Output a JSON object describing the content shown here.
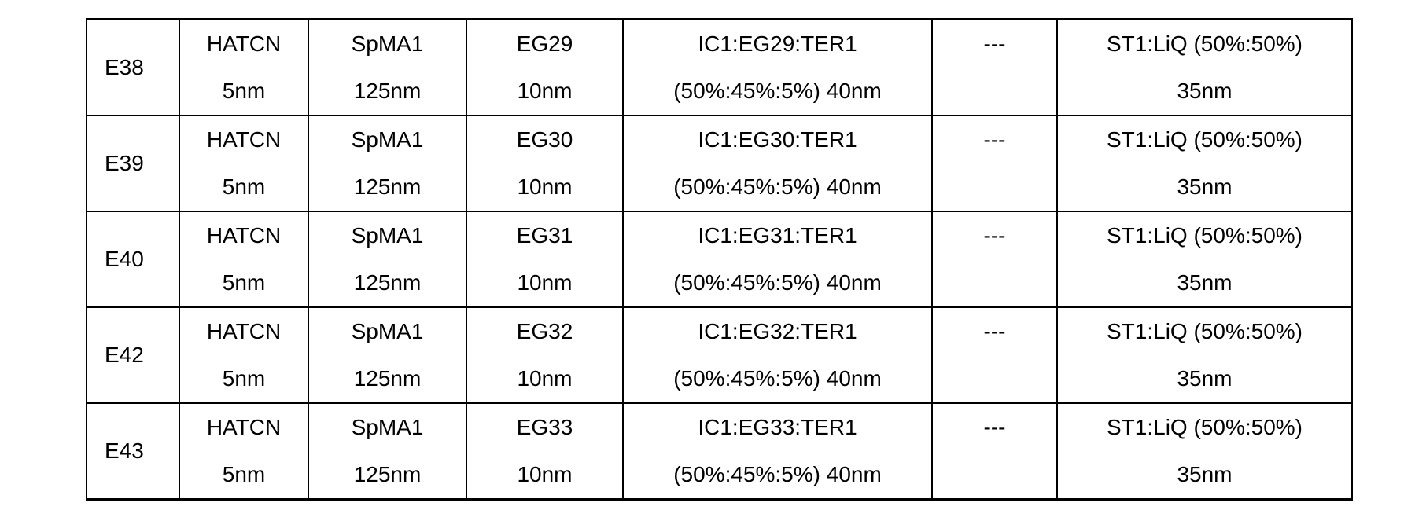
{
  "rows": [
    {
      "id": "E38",
      "hil": [
        "HATCN",
        "5nm"
      ],
      "htl": [
        "SpMA1",
        "125nm"
      ],
      "ebl": [
        "EG29",
        "10nm"
      ],
      "eml": [
        "IC1:EG29:TER1",
        "(50%:45%:5%) 40nm"
      ],
      "hbl": "---",
      "etl": [
        "ST1:LiQ (50%:50%)",
        "35nm"
      ]
    },
    {
      "id": "E39",
      "hil": [
        "HATCN",
        "5nm"
      ],
      "htl": [
        "SpMA1",
        "125nm"
      ],
      "ebl": [
        "EG30",
        "10nm"
      ],
      "eml": [
        "IC1:EG30:TER1",
        "(50%:45%:5%) 40nm"
      ],
      "hbl": "---",
      "etl": [
        "ST1:LiQ (50%:50%)",
        "35nm"
      ]
    },
    {
      "id": "E40",
      "hil": [
        "HATCN",
        "5nm"
      ],
      "htl": [
        "SpMA1",
        "125nm"
      ],
      "ebl": [
        "EG31",
        "10nm"
      ],
      "eml": [
        "IC1:EG31:TER1",
        "(50%:45%:5%) 40nm"
      ],
      "hbl": "---",
      "etl": [
        "ST1:LiQ (50%:50%)",
        "35nm"
      ]
    },
    {
      "id": "E42",
      "hil": [
        "HATCN",
        "5nm"
      ],
      "htl": [
        "SpMA1",
        "125nm"
      ],
      "ebl": [
        "EG32",
        "10nm"
      ],
      "eml": [
        "IC1:EG32:TER1",
        "(50%:45%:5%) 40nm"
      ],
      "hbl": "---",
      "etl": [
        "ST1:LiQ (50%:50%)",
        "35nm"
      ]
    },
    {
      "id": "E43",
      "hil": [
        "HATCN",
        "5nm"
      ],
      "htl": [
        "SpMA1",
        "125nm"
      ],
      "ebl": [
        "EG33",
        "10nm"
      ],
      "eml": [
        "IC1:EG33:TER1",
        "(50%:45%:5%) 40nm"
      ],
      "hbl": "---",
      "etl": [
        "ST1:LiQ (50%:50%)",
        "35nm"
      ]
    }
  ]
}
